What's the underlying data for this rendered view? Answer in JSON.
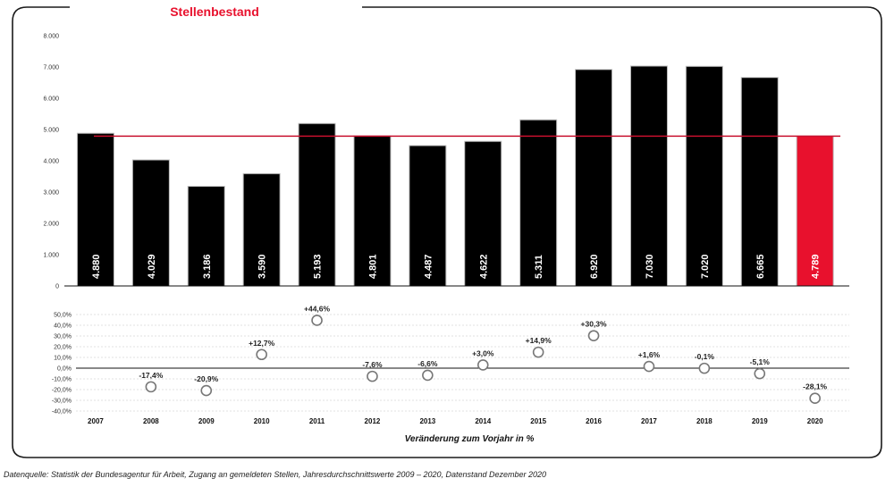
{
  "chart_data": [
    {
      "type": "bar",
      "title": "Stellenbestand",
      "categories": [
        "2007",
        "2008",
        "2009",
        "2010",
        "2011",
        "2012",
        "2013",
        "2014",
        "2015",
        "2016",
        "2017",
        "2018",
        "2019",
        "2020"
      ],
      "values": [
        4880,
        4029,
        3186,
        3590,
        5193,
        4801,
        4487,
        4622,
        5311,
        6920,
        7030,
        7020,
        6665,
        4789
      ],
      "value_labels": [
        "4.880",
        "4.029",
        "3.186",
        "3.590",
        "5.193",
        "4.801",
        "4.487",
        "4.622",
        "5.311",
        "6.920",
        "7.030",
        "7.020",
        "6.665",
        "4.789"
      ],
      "ylim": [
        0,
        8000
      ],
      "yticks": [
        0,
        1000,
        2000,
        3000,
        4000,
        5000,
        6000,
        7000,
        8000
      ],
      "ytick_labels": [
        "0",
        "1.000",
        "2.000",
        "3.000",
        "4.000",
        "5.000",
        "6.000",
        "7.000",
        "8.000"
      ],
      "reference_line": 4789,
      "bar_color": "#000000",
      "highlight_index": 13,
      "highlight_color": "#e8112d",
      "reference_line_color": "#c8102e",
      "title_color": "#e8112d"
    },
    {
      "type": "scatter",
      "categories": [
        "2007",
        "2008",
        "2009",
        "2010",
        "2011",
        "2012",
        "2013",
        "2014",
        "2015",
        "2016",
        "2017",
        "2018",
        "2019",
        "2020"
      ],
      "values": [
        null,
        -17.4,
        -20.9,
        12.7,
        44.6,
        -7.6,
        -6.6,
        3.0,
        14.9,
        30.3,
        1.6,
        -0.1,
        -5.1,
        -28.1
      ],
      "value_labels": [
        "",
        "-17,4%",
        "-20,9%",
        "+12,7%",
        "+44,6%",
        "-7,6%",
        "-6,6%",
        "+3,0%",
        "+14,9%",
        "+30,3%",
        "+1,6%",
        "-0,1%",
        "-5,1%",
        "-28,1%"
      ],
      "xlabel": "Veränderung zum Vorjahr in %",
      "ylim": [
        -40,
        50
      ],
      "yticks": [
        -40,
        -30,
        -20,
        -10,
        0,
        10,
        20,
        30,
        40,
        50
      ],
      "ytick_labels": [
        "-40,0%",
        "-30,0%",
        "-20,0%",
        "-10,0%",
        "0,0%",
        "10,0%",
        "20,0%",
        "30,0%",
        "40,0%",
        "50,0%"
      ],
      "grid": true
    }
  ],
  "footnote": "Datenquelle: Statistik der Bundesagentur für Arbeit, Zugang an gemeldeten Stellen, Jahresdurchschnittswerte 2009 – 2020, Datenstand Dezember 2020"
}
